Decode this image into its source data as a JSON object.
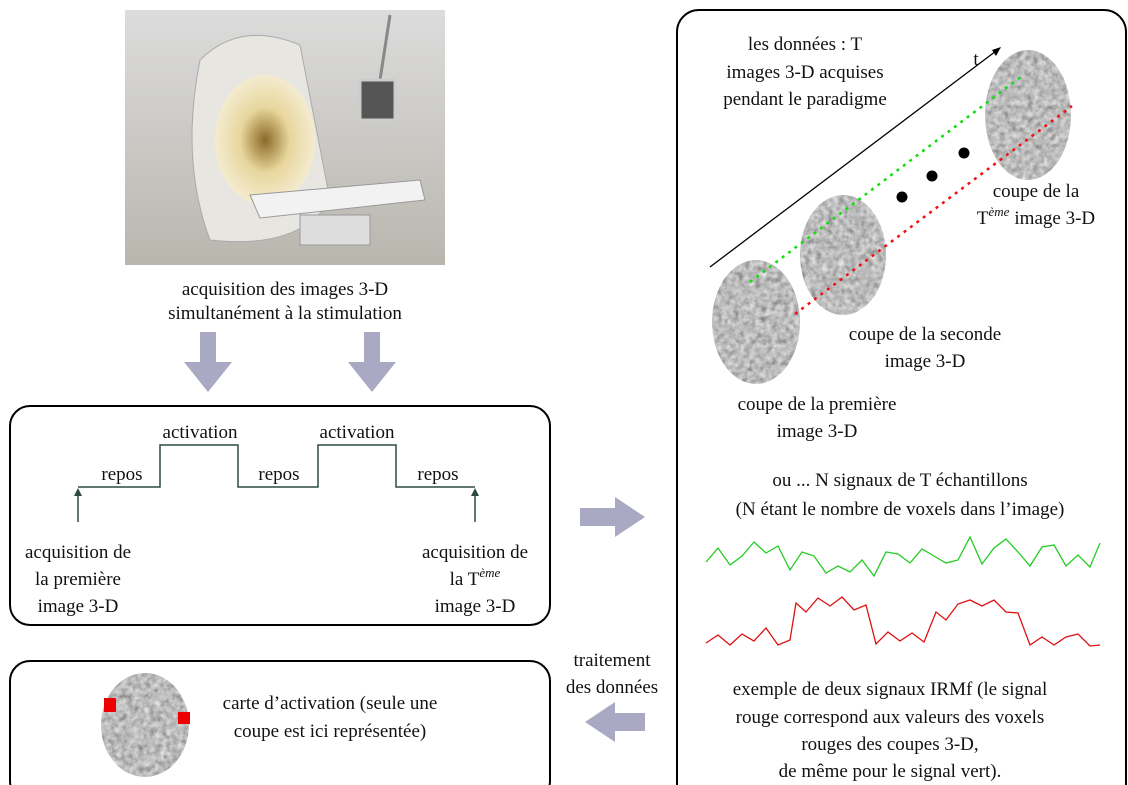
{
  "acquisition": {
    "caption": [
      "acquisition des images 3-D",
      "simultanément à la stimulation"
    ]
  },
  "paradigm": {
    "activation": [
      "activation",
      "activation"
    ],
    "repos": [
      "repos",
      "repos",
      "repos"
    ],
    "first": [
      "acquisition de",
      "la première",
      "image 3-D"
    ],
    "last": {
      "line1": "acquisition de",
      "line2": "la T",
      "line2_sup": "ème",
      "line3": "image 3-D"
    }
  },
  "activation_map": {
    "caption": [
      "carte d’activation (seule une",
      "coupe est ici représentée)"
    ]
  },
  "processing": [
    "traitement",
    "des données"
  ],
  "data_panel": {
    "intro": [
      "les données : T",
      "images 3-D acquises",
      "pendant le paradigme"
    ],
    "axis": "t",
    "last_slice": {
      "line1": "coupe de la",
      "line2": "T",
      "line2_sup": "ème",
      "line2_rest": "image 3-D"
    },
    "second_slice": [
      "coupe de la seconde",
      "image 3-D"
    ],
    "first_slice": [
      "coupe de la première",
      "image 3-D"
    ],
    "signals_intro": [
      "ou ... N signaux de T échantillons",
      "(N étant le nombre de voxels dans l’image)"
    ],
    "signals_caption": [
      "exemple de deux signaux IRMf (le signal",
      "rouge correspond aux valeurs des voxels",
      "rouges des coupes 3-D,",
      "de même pour le signal vert)."
    ]
  }
}
